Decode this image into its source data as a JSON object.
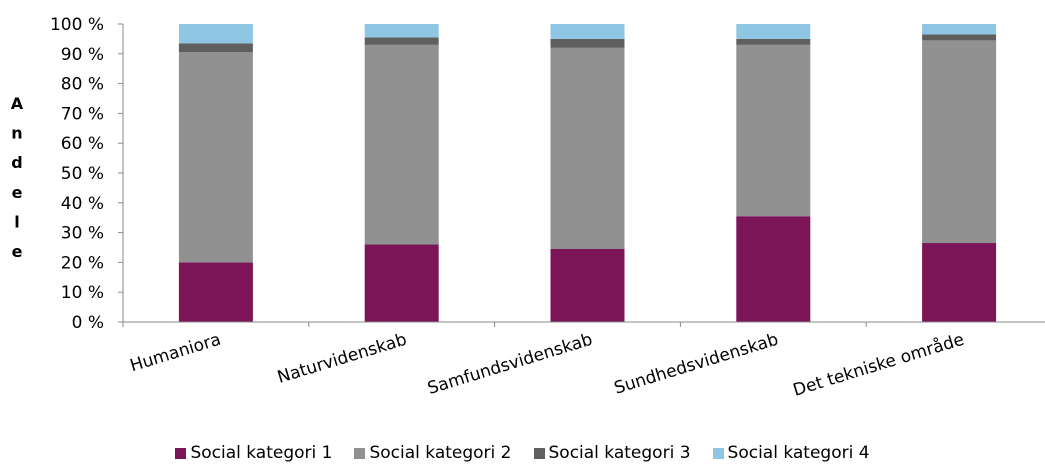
{
  "chart_data": {
    "type": "bar",
    "stacked": true,
    "title": "",
    "xlabel": "",
    "ylabel": "Andele",
    "ylim": [
      0,
      100
    ],
    "y_ticks": [
      "0 %",
      "10 %",
      "20 %",
      "30 %",
      "40 %",
      "50 %",
      "60 %",
      "70 %",
      "80 %",
      "90 %",
      "100 %"
    ],
    "categories": [
      "Humaniora",
      "Naturvidenskab",
      "Samfundsvidenskab",
      "Sundhedsvidenskab",
      "Det tekniske område"
    ],
    "series": [
      {
        "name": "Social kategori 1",
        "color": "#7b1557",
        "values": [
          20,
          26,
          24.5,
          35.5,
          26.5
        ]
      },
      {
        "name": "Social kategori 2",
        "color": "#919191",
        "values": [
          70.5,
          67,
          67.5,
          57.5,
          68
        ]
      },
      {
        "name": "Social kategori 3",
        "color": "#5f5f5f",
        "values": [
          3,
          2.5,
          3,
          2,
          2
        ]
      },
      {
        "name": "Social kategori 4",
        "color": "#8ec6e3",
        "values": [
          6.5,
          4.5,
          5,
          5,
          3.5
        ]
      }
    ],
    "legend_position": "bottom",
    "grid": false
  }
}
